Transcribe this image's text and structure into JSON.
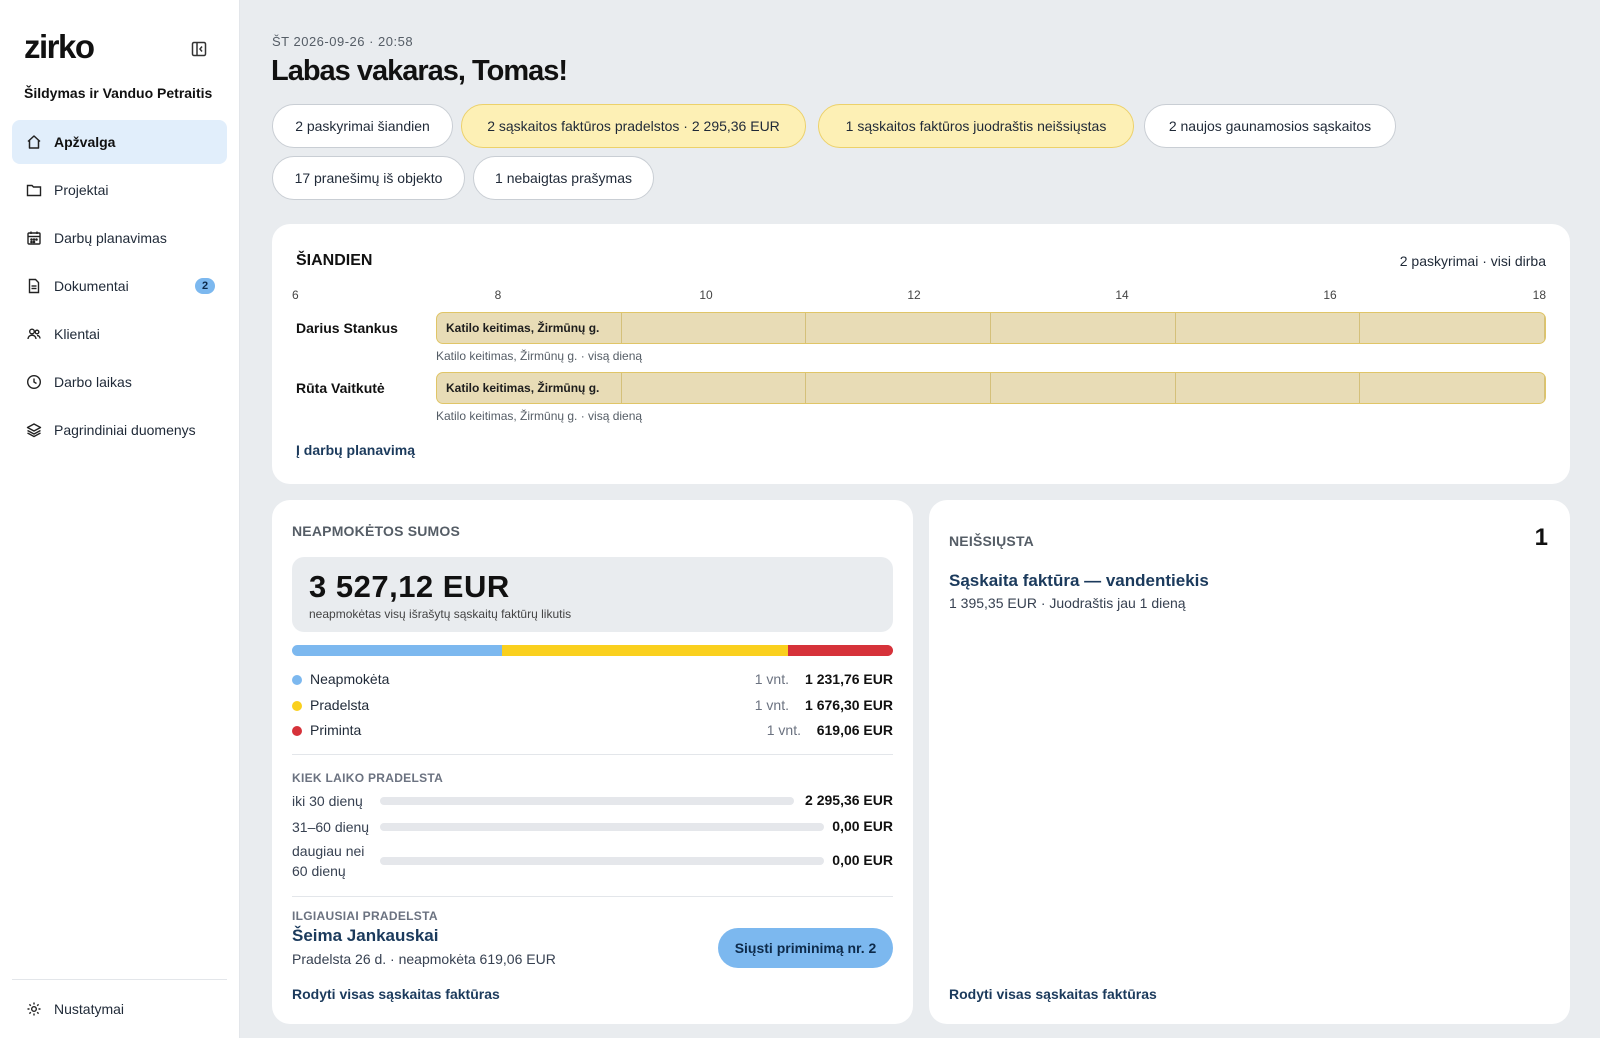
{
  "sidebar": {
    "logo": "zirko",
    "company": "Šildymas ir Vanduo Petraitis",
    "items": [
      {
        "label": "Apžvalga",
        "active": true,
        "icon": "home-icon"
      },
      {
        "label": "Projektai",
        "icon": "folder-icon"
      },
      {
        "label": "Darbų planavimas",
        "icon": "calendar-icon"
      },
      {
        "label": "Dokumentai",
        "icon": "document-icon",
        "badge": "2"
      },
      {
        "label": "Klientai",
        "icon": "users-icon"
      },
      {
        "label": "Darbo laikas",
        "icon": "clock-icon"
      },
      {
        "label": "Pagrindiniai duomenys",
        "icon": "layers-icon"
      }
    ],
    "settings": "Nustatymai"
  },
  "header": {
    "date": "ŠT 2026-09-26 · 20:58",
    "greeting": "Labas vakaras, Tomas!"
  },
  "chips": [
    {
      "label": "2 paskyrimai šiandien",
      "tone": "neutral"
    },
    {
      "label": "2 sąskaitos faktūros pradelstos · 2 295,36 EUR",
      "tone": "warn"
    },
    {
      "label": "1 sąskaitos faktūros juodraštis neišsiųstas",
      "tone": "warn"
    },
    {
      "label": "2 naujos gaunamosios sąskaitos",
      "tone": "neutral"
    },
    {
      "label": "17 pranešimų iš objekto",
      "tone": "neutral"
    },
    {
      "label": "1 nebaigtas prašymas",
      "tone": "neutral"
    }
  ],
  "today": {
    "title": "ŠIANDIEN",
    "meta": "2 paskyrimai · visi dirba",
    "hours": [
      "6",
      "8",
      "10",
      "12",
      "14",
      "16",
      "18"
    ],
    "rows": [
      {
        "person": "Darius Stankus",
        "job": "Katilo keitimas, Žirmūnų g.",
        "sub": "Katilo keitimas, Žirmūnų g. · visą dieną"
      },
      {
        "person": "Rūta Vaitkutė",
        "job": "Katilo keitimas, Žirmūnų g.",
        "sub": "Katilo keitimas, Žirmūnų g. · visą dieną"
      }
    ],
    "link": "Į darbų planavimą"
  },
  "unpaid": {
    "title": "NEAPMOKĖTOS SUMOS",
    "total": "3 527,12 EUR",
    "total_sub": "neapmokėtas visų išrašytų sąskaitų faktūrų likutis",
    "breakdown": [
      {
        "label": "Neapmokėta",
        "count": "1 vnt.",
        "amount": "1 231,76 EUR",
        "value": 1231.76,
        "color": "#7cb8ef"
      },
      {
        "label": "Pradelsta",
        "count": "1 vnt.",
        "amount": "1 676,30 EUR",
        "value": 1676.3,
        "color": "#fad01e"
      },
      {
        "label": "Priminta",
        "count": "1 vnt.",
        "amount": "619,06 EUR",
        "value": 619.06,
        "color": "#d6323a"
      }
    ],
    "aging_title": "KIEK LAIKO PRADELSTA",
    "aging": [
      {
        "label": "iki 30 dienų",
        "amount": "2 295,36 EUR",
        "fraction": 1.0
      },
      {
        "label": "31–60 dienų",
        "amount": "0,00 EUR",
        "fraction": 0
      },
      {
        "label": "daugiau nei 60 dienų",
        "amount": "0,00 EUR",
        "fraction": 0
      }
    ],
    "longest_title": "ILGIAUSIAI PRADELSTA",
    "longest_client": "Šeima Jankauskai",
    "longest_sub": "Pradelsta 26 d. · neapmokėta 619,06 EUR",
    "remind_button": "Siųsti priminimą nr. 2",
    "link": "Rodyti visas sąskaitas faktūras"
  },
  "unsent": {
    "title": "NEIŠSIŲSTA",
    "count": "1",
    "invoice_title": "Sąskaita faktūra — vandentiekis",
    "invoice_sub": "1 395,35 EUR · Juodraštis jau 1 dieną",
    "link": "Rodyti visas sąskaitas faktūras"
  }
}
